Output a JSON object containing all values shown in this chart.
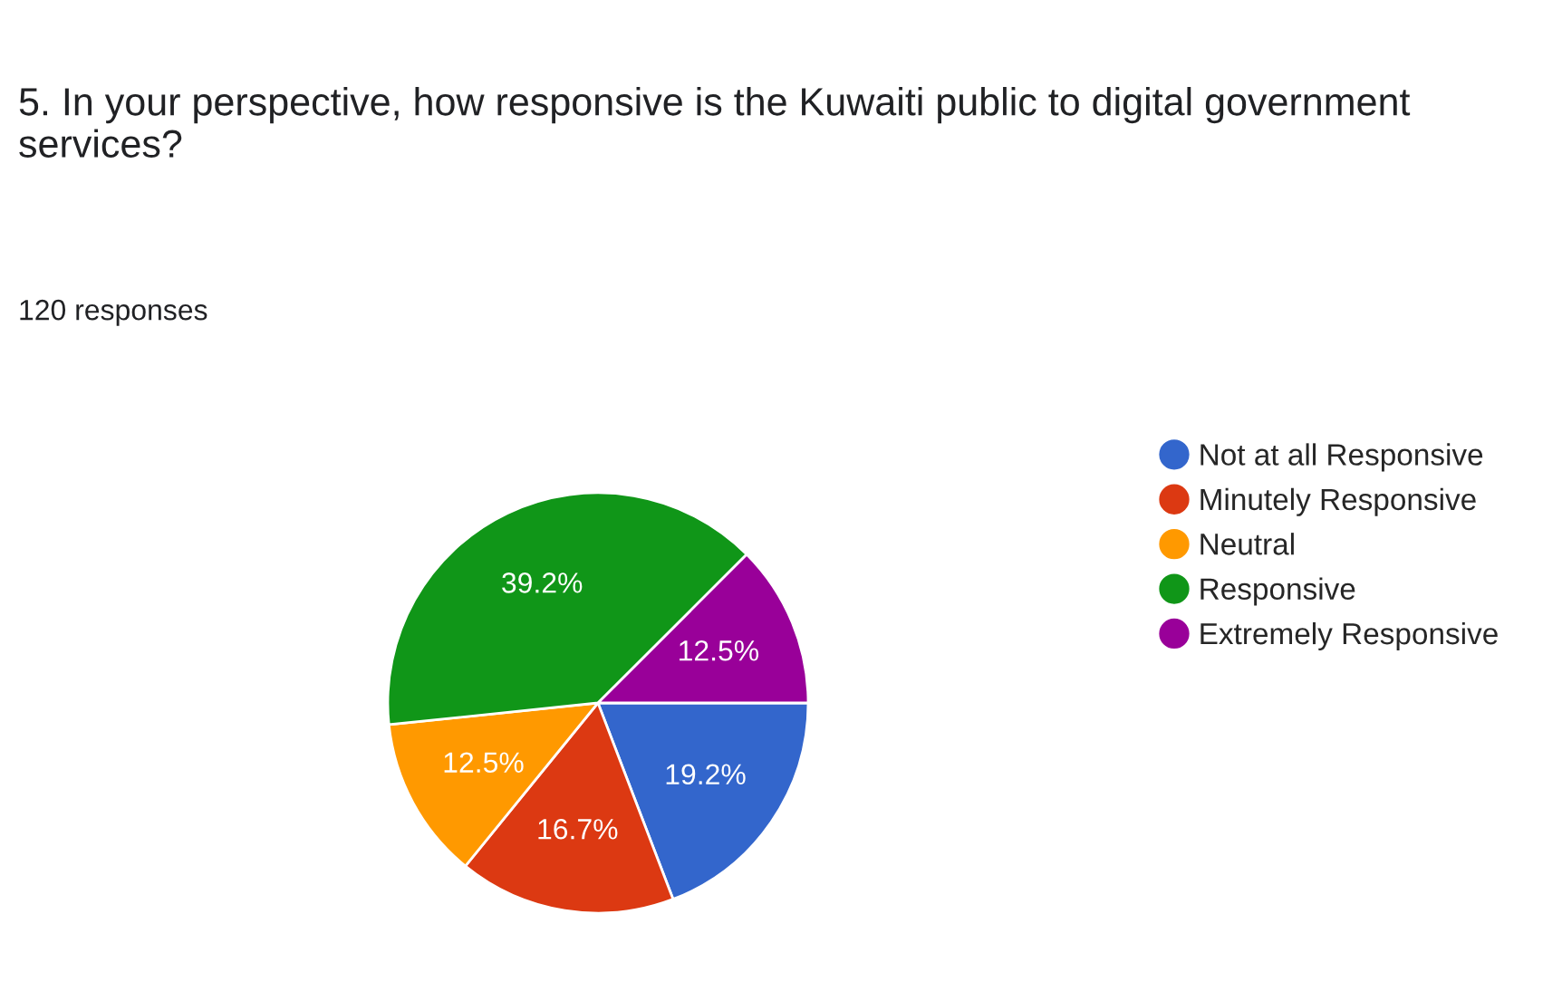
{
  "chart_data": {
    "type": "pie",
    "title": "5. In your perspective, how responsive is the Kuwaiti public to digital government services?",
    "annotations": [
      "120 responses"
    ],
    "categories": [
      "Not at all Responsive",
      "Minutely Responsive",
      "Neutral",
      "Responsive",
      "Extremely Responsive"
    ],
    "values": [
      19.2,
      16.7,
      12.5,
      39.2,
      12.5
    ],
    "value_labels": [
      "19.2%",
      "16.7%",
      "12.5%",
      "39.2%",
      "12.5%"
    ],
    "colors": [
      "#3366cc",
      "#dc3912",
      "#ff9900",
      "#109618",
      "#990099"
    ],
    "legend": "right"
  }
}
